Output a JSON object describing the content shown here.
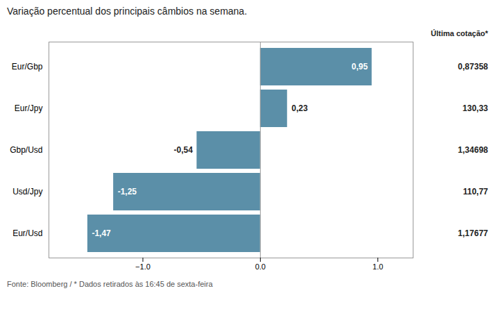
{
  "chart_data": {
    "type": "bar",
    "orientation": "horizontal",
    "title": "Variação percentual dos principais câmbios na semana.",
    "categories": [
      "Eur/Gbp",
      "Eur/Jpy",
      "Gbp/Usd",
      "Usd/Jpy",
      "Eur/Usd"
    ],
    "values": [
      0.95,
      0.23,
      -0.54,
      -1.25,
      -1.47
    ],
    "value_labels": [
      "0,95",
      "0,23",
      "-0,54",
      "-1,25",
      "-1,47"
    ],
    "data_labels": true,
    "color": "#5b8fa8",
    "xlim": [
      -1.8,
      1.3
    ],
    "xticks": [
      -1,
      0,
      1
    ],
    "grid": false,
    "side_column": {
      "title": "Última cotação*",
      "labels": [
        "0,87358",
        "130,33",
        "1,34698",
        "110,77",
        "1,17677"
      ]
    },
    "caption": "Fonte: Bloomberg / * Dados retirados às 16:45 de sexta-feira"
  }
}
